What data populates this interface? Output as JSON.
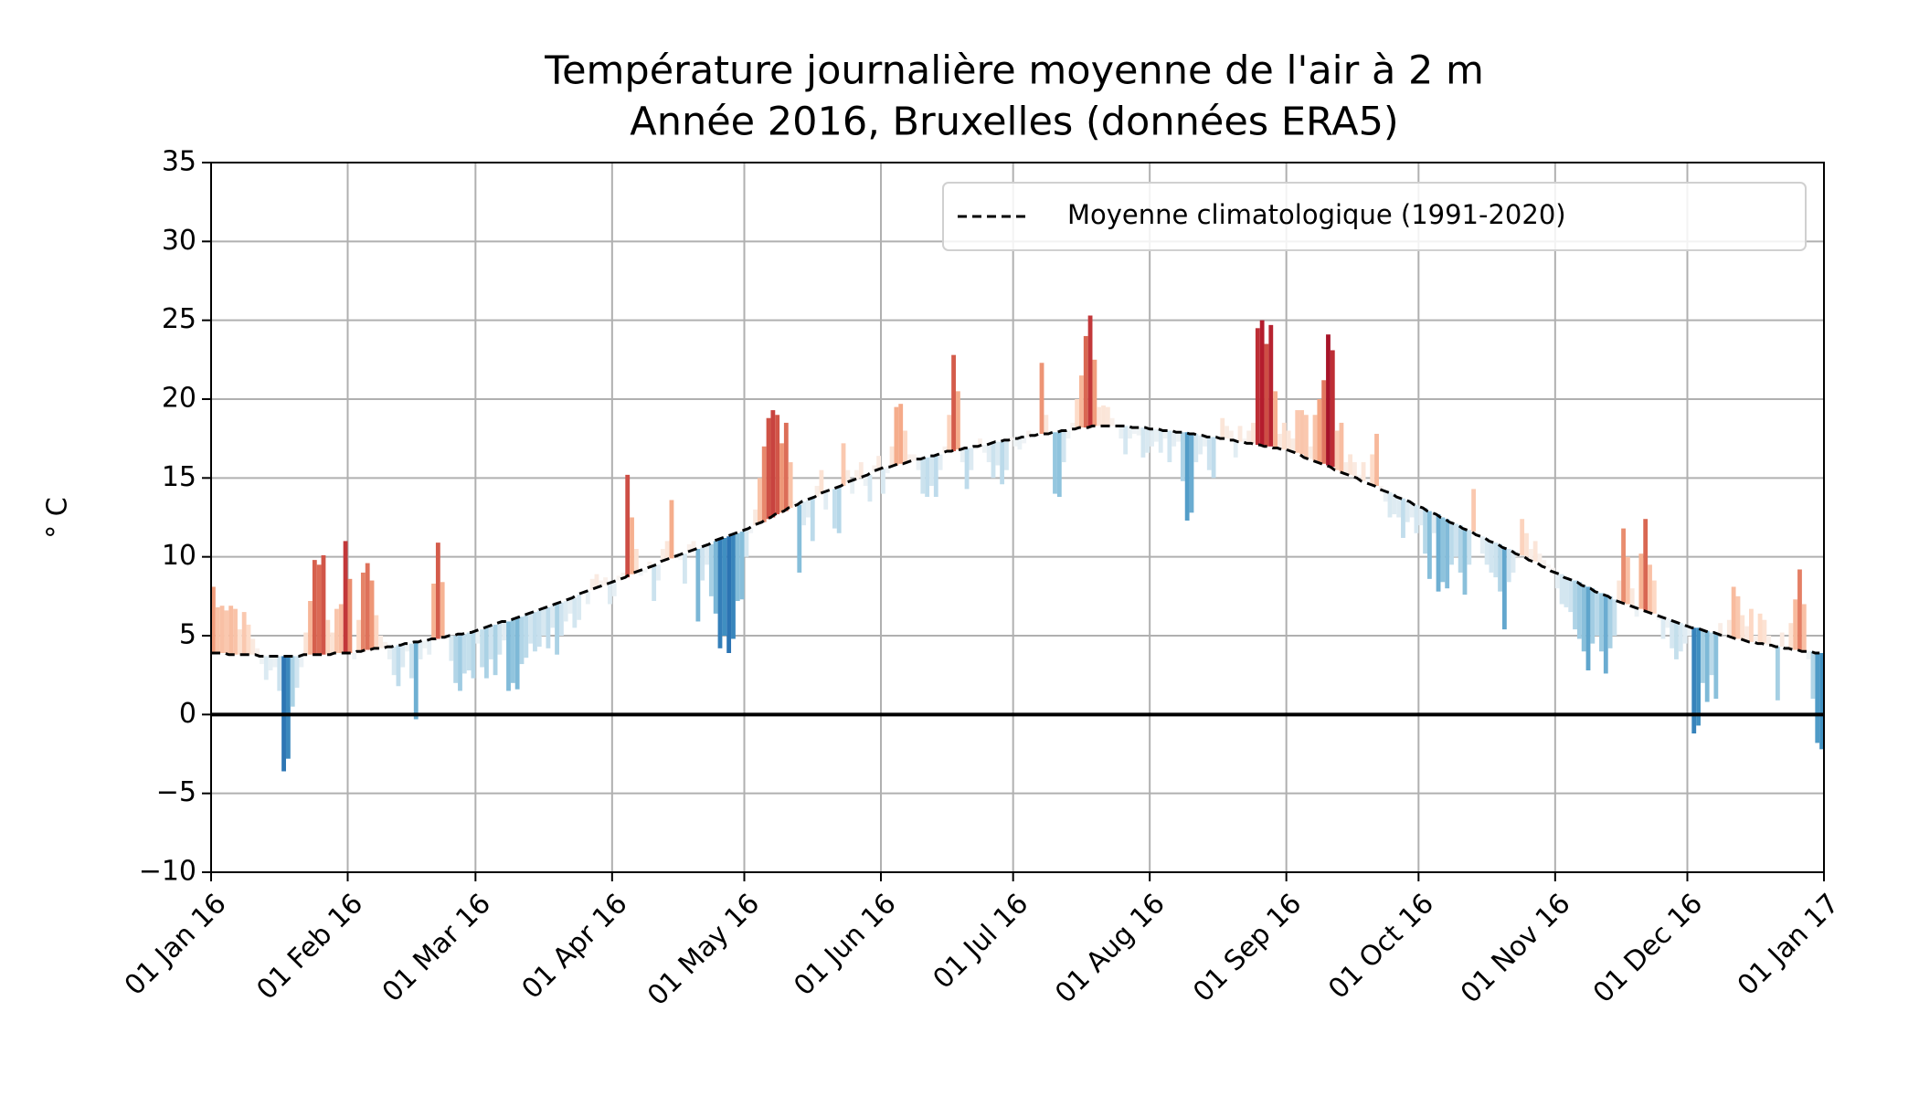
{
  "chart_data": {
    "type": "anomaly_bar",
    "title": "Température journalière moyenne de l'air à 2 m",
    "subtitle": "Année 2016, Bruxelles (données ERA5)",
    "ylabel": "° C",
    "xlim": [
      0,
      366
    ],
    "xticks": [
      {
        "value": 0,
        "label": "01 Jan 16"
      },
      {
        "value": 31,
        "label": "01 Feb 16"
      },
      {
        "value": 60,
        "label": "01 Mar 16"
      },
      {
        "value": 91,
        "label": "01 Apr 16"
      },
      {
        "value": 121,
        "label": "01 May 16"
      },
      {
        "value": 152,
        "label": "01 Jun 16"
      },
      {
        "value": 182,
        "label": "01 Jul 16"
      },
      {
        "value": 213,
        "label": "01 Aug 16"
      },
      {
        "value": 244,
        "label": "01 Sep 16"
      },
      {
        "value": 274,
        "label": "01 Oct 16"
      },
      {
        "value": 305,
        "label": "01 Nov 16"
      },
      {
        "value": 335,
        "label": "01 Dec 16"
      },
      {
        "value": 366,
        "label": "01 Jan 17"
      }
    ],
    "ylim": [
      -10,
      35
    ],
    "yticks": [
      {
        "value": -10,
        "label": "−10"
      },
      {
        "value": -5,
        "label": "−5"
      },
      0,
      5,
      10,
      15,
      20,
      25,
      30,
      35
    ],
    "grid": true,
    "reference_line": 0,
    "legend": "upper right",
    "colormap": {
      "colors": [
        "#053061",
        "#2166ac",
        "#4393c3",
        "#92c5de",
        "#d1e5f0",
        "#f7f7f7",
        "#fddbc7",
        "#f4a582",
        "#d6604d",
        "#b2182b",
        "#67001f"
      ],
      "vmin": -10,
      "vmax": 10
    },
    "values": [
      8.1,
      6.8,
      6.9,
      6.6,
      6.9,
      6.7,
      5.4,
      6.5,
      5.7,
      4.8,
      4.2,
      3.2,
      2.2,
      2.8,
      3.0,
      1.5,
      -3.6,
      -2.8,
      0.5,
      1.7,
      3.0,
      5.2,
      7.2,
      9.8,
      9.5,
      10.1,
      6.0,
      5.2,
      6.7,
      7.0,
      11.0,
      8.6,
      3.5,
      6.0,
      9.0,
      9.6,
      8.5,
      6.3,
      5.0,
      4.6,
      3.5,
      2.5,
      1.8,
      3.0,
      4.0,
      2.3,
      -0.3,
      3.5,
      4.2,
      3.8,
      8.3,
      10.9,
      8.4,
      5.0,
      3.4,
      2.0,
      1.5,
      2.6,
      2.8,
      2.3,
      4.5,
      3.0,
      2.3,
      3.5,
      2.5,
      3.8,
      4.7,
      1.5,
      2.0,
      1.6,
      3.2,
      3.6,
      4.5,
      4.0,
      4.3,
      5.0,
      4.2,
      5.5,
      3.8,
      5.0,
      5.9,
      6.4,
      5.5,
      6.0,
      7.8,
      7.0,
      8.6,
      8.9,
      8.5,
      8.7,
      7.0,
      7.5,
      8.8,
      9.0,
      15.2,
      12.5,
      10.5,
      8.8,
      9.0,
      9.7,
      7.2,
      8.5,
      10.5,
      11.0,
      13.6,
      10.2,
      9.8,
      8.3,
      10.8,
      11.0,
      5.9,
      8.5,
      9.5,
      7.5,
      6.4,
      4.2,
      5.0,
      3.9,
      4.8,
      7.2,
      7.3,
      10.0,
      11.5,
      13.0,
      15.0,
      17.0,
      18.8,
      19.3,
      19.0,
      17.2,
      18.5,
      16.0,
      13.5,
      9.0,
      12.0,
      12.5,
      11.0,
      14.5,
      15.5,
      13.0,
      14.2,
      11.8,
      11.5,
      17.2,
      15.5,
      14.0,
      15.5,
      16.0,
      14.5,
      13.5,
      15.8,
      16.4,
      14.0,
      15.3,
      17.0,
      19.5,
      19.7,
      18.0,
      16.5,
      16.5,
      15.5,
      14.0,
      13.8,
      14.5,
      13.8,
      15.5,
      17.0,
      19.0,
      22.8,
      20.5,
      16.0,
      14.3,
      15.5,
      16.8,
      17.5,
      16.6,
      16.0,
      15.0,
      15.8,
      14.6,
      15.5,
      17.6,
      17.0,
      16.8,
      17.2,
      18.0,
      17.5,
      17.7,
      22.3,
      19.0,
      18.0,
      14.0,
      13.8,
      16.0,
      17.5,
      18.5,
      20.0,
      21.5,
      24.0,
      25.3,
      22.5,
      19.5,
      19.6,
      19.5,
      18.8,
      18.2,
      17.5,
      16.5,
      17.5,
      17.8,
      17.7,
      16.3,
      16.6,
      17.0,
      17.3,
      16.6,
      17.5,
      16.0,
      17.0,
      17.3,
      14.8,
      12.3,
      12.8,
      16.0,
      16.5,
      17.0,
      15.5,
      15.0,
      17.5,
      18.8,
      18.3,
      18.0,
      16.3,
      18.3,
      17.5,
      18.0,
      18.5,
      24.5,
      25.0,
      23.5,
      24.7,
      20.5,
      17.8,
      18.5,
      18.0,
      17.5,
      19.3,
      19.3,
      19.0,
      17.0,
      19.0,
      20.0,
      21.2,
      24.1,
      23.1,
      18.0,
      18.5,
      16.0,
      16.5,
      16.0,
      15.2,
      16.0,
      14.8,
      16.5,
      17.8,
      14.5,
      13.5,
      12.5,
      12.7,
      12.5,
      11.2,
      12.2,
      12.5,
      11.5,
      12.0,
      10.2,
      8.6,
      11.5,
      7.8,
      8.4,
      8.0,
      9.5,
      10.0,
      9.0,
      7.6,
      9.5,
      14.3,
      11.5,
      10.2,
      9.5,
      9.0,
      8.7,
      7.8,
      5.4,
      8.4,
      9.0,
      10.0,
      12.4,
      11.5,
      10.5,
      11.0,
      10.2,
      9.8,
      9.5,
      9.3,
      8.0,
      7.0,
      6.8,
      6.5,
      5.4,
      4.8,
      4.0,
      2.8,
      4.5,
      5.0,
      4.0,
      2.6,
      4.2,
      5.0,
      8.5,
      11.8,
      10.0,
      8.0,
      6.2,
      10.2,
      12.4,
      9.5,
      8.5,
      6.0,
      4.8,
      5.5,
      4.2,
      3.5,
      4.0,
      4.5,
      5.0,
      -1.2,
      -0.7,
      2.0,
      0.8,
      2.5,
      1.0,
      5.8,
      5.0,
      6.0,
      8.1,
      7.5,
      6.3,
      5.6,
      6.7,
      5.0,
      6.4,
      6.0,
      5.0,
      4.5,
      0.9,
      5.2,
      4.4,
      5.8,
      7.3,
      9.2,
      7.0,
      3.5,
      1.0,
      -1.8,
      -2.2
    ],
    "series": [
      {
        "name": "Moyenne climatologique (1991-2020)",
        "color": "#000000",
        "style": "dashed",
        "values": [
          3.9,
          3.9,
          3.9,
          3.9,
          3.8,
          3.8,
          3.8,
          3.8,
          3.8,
          3.8,
          3.8,
          3.7,
          3.7,
          3.7,
          3.7,
          3.7,
          3.7,
          3.7,
          3.7,
          3.7,
          3.7,
          3.8,
          3.8,
          3.8,
          3.8,
          3.8,
          3.8,
          3.8,
          3.9,
          3.9,
          3.9,
          3.9,
          3.9,
          4.0,
          4.0,
          4.1,
          4.1,
          4.2,
          4.2,
          4.2,
          4.3,
          4.3,
          4.4,
          4.4,
          4.5,
          4.5,
          4.6,
          4.6,
          4.7,
          4.7,
          4.8,
          4.8,
          4.9,
          4.9,
          5.0,
          5.0,
          5.1,
          5.1,
          5.2,
          5.2,
          5.3,
          5.4,
          5.5,
          5.6,
          5.7,
          5.8,
          5.9,
          5.9,
          6.0,
          6.1,
          6.2,
          6.3,
          6.4,
          6.5,
          6.6,
          6.7,
          6.8,
          6.9,
          7.0,
          7.1,
          7.2,
          7.3,
          7.4,
          7.6,
          7.7,
          7.8,
          7.9,
          8.0,
          8.1,
          8.2,
          8.3,
          8.4,
          8.5,
          8.6,
          8.7,
          8.9,
          9.0,
          9.1,
          9.2,
          9.3,
          9.4,
          9.5,
          9.7,
          9.8,
          9.9,
          10.0,
          10.1,
          10.2,
          10.3,
          10.4,
          10.5,
          10.6,
          10.7,
          10.8,
          11.0,
          11.1,
          11.2,
          11.3,
          11.4,
          11.5,
          11.6,
          11.7,
          11.8,
          12.0,
          12.1,
          12.2,
          12.4,
          12.5,
          12.7,
          12.8,
          12.9,
          13.1,
          13.2,
          13.3,
          13.5,
          13.6,
          13.7,
          13.8,
          14.0,
          14.1,
          14.2,
          14.3,
          14.4,
          14.5,
          14.7,
          14.8,
          14.9,
          15.0,
          15.1,
          15.2,
          15.4,
          15.5,
          15.6,
          15.7,
          15.7,
          15.8,
          15.9,
          15.9,
          16.0,
          16.1,
          16.2,
          16.2,
          16.3,
          16.4,
          16.4,
          16.5,
          16.6,
          16.7,
          16.7,
          16.8,
          16.8,
          16.9,
          16.9,
          17.0,
          17.0,
          17.1,
          17.1,
          17.2,
          17.3,
          17.3,
          17.4,
          17.4,
          17.5,
          17.5,
          17.6,
          17.6,
          17.7,
          17.7,
          17.8,
          17.8,
          17.8,
          17.9,
          17.9,
          18.0,
          18.0,
          18.1,
          18.1,
          18.2,
          18.2,
          18.2,
          18.3,
          18.3,
          18.3,
          18.3,
          18.3,
          18.3,
          18.3,
          18.3,
          18.3,
          18.2,
          18.2,
          18.2,
          18.2,
          18.1,
          18.1,
          18.1,
          18.0,
          18.0,
          18.0,
          17.9,
          17.9,
          17.9,
          17.8,
          17.8,
          17.7,
          17.7,
          17.6,
          17.6,
          17.6,
          17.5,
          17.5,
          17.4,
          17.4,
          17.3,
          17.3,
          17.2,
          17.2,
          17.1,
          17.1,
          17.0,
          17.0,
          16.9,
          16.9,
          16.8,
          16.8,
          16.7,
          16.6,
          16.5,
          16.3,
          16.2,
          16.1,
          16.0,
          15.9,
          15.8,
          15.7,
          15.5,
          15.4,
          15.3,
          15.2,
          15.1,
          15.0,
          14.8,
          14.7,
          14.6,
          14.5,
          14.3,
          14.2,
          14.1,
          14.0,
          13.8,
          13.7,
          13.6,
          13.5,
          13.3,
          13.2,
          13.1,
          12.9,
          12.8,
          12.7,
          12.5,
          12.4,
          12.2,
          12.1,
          12.0,
          11.8,
          11.7,
          11.6,
          11.4,
          11.3,
          11.2,
          11.0,
          10.9,
          10.8,
          10.6,
          10.5,
          10.4,
          10.2,
          10.1,
          10.0,
          9.8,
          9.7,
          9.6,
          9.4,
          9.3,
          9.1,
          9.0,
          8.9,
          8.7,
          8.6,
          8.5,
          8.4,
          8.2,
          8.1,
          8.0,
          7.8,
          7.7,
          7.6,
          7.5,
          7.3,
          7.2,
          7.1,
          7.0,
          6.9,
          6.8,
          6.7,
          6.6,
          6.5,
          6.4,
          6.3,
          6.2,
          6.1,
          6.0,
          5.9,
          5.8,
          5.7,
          5.6,
          5.5,
          5.5,
          5.4,
          5.3,
          5.2,
          5.2,
          5.1,
          5.0,
          5.0,
          4.9,
          4.8,
          4.8,
          4.7,
          4.6,
          4.6,
          4.5,
          4.5,
          4.4,
          4.4,
          4.3,
          4.3,
          4.2,
          4.2,
          4.1,
          4.1,
          4.0,
          4.0,
          4.0,
          3.9,
          3.9
        ]
      }
    ]
  }
}
